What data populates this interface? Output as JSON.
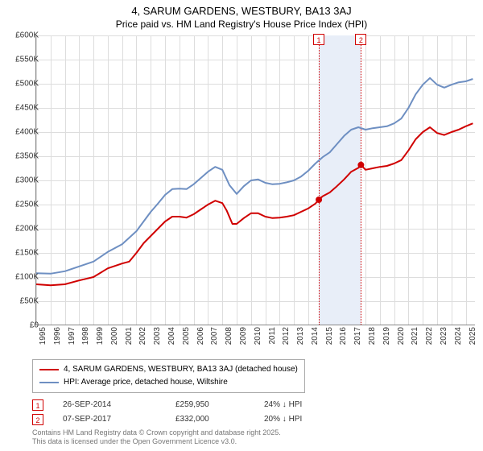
{
  "title_line1": "4, SARUM GARDENS, WESTBURY, BA13 3AJ",
  "title_line2": "Price paid vs. HM Land Registry's House Price Index (HPI)",
  "chart": {
    "type": "line",
    "x_start_year": 1995,
    "x_end_year": 2025.7,
    "ylim": [
      0,
      600000
    ],
    "ytick_step": 50000,
    "y_ticks": [
      "£0",
      "£50K",
      "£100K",
      "£150K",
      "£200K",
      "£250K",
      "£300K",
      "£350K",
      "£400K",
      "£450K",
      "£500K",
      "£550K",
      "£600K"
    ],
    "x_ticks": [
      "1995",
      "1996",
      "1997",
      "1998",
      "1999",
      "2000",
      "2001",
      "2002",
      "2003",
      "2004",
      "2005",
      "2006",
      "2007",
      "2008",
      "2009",
      "2010",
      "2011",
      "2012",
      "2013",
      "2014",
      "2015",
      "2016",
      "2017",
      "2018",
      "2019",
      "2020",
      "2021",
      "2022",
      "2023",
      "2024",
      "2025"
    ],
    "grid_color": "#dddddd",
    "background_color": "#ffffff",
    "series": [
      {
        "name": "price_paid",
        "label": "4, SARUM GARDENS, WESTBURY, BA13 3AJ (detached house)",
        "color": "#d00000",
        "line_width": 2,
        "points": [
          [
            1995.0,
            85000
          ],
          [
            1996.0,
            83000
          ],
          [
            1997.0,
            85000
          ],
          [
            1998.0,
            93000
          ],
          [
            1999.0,
            100000
          ],
          [
            2000.0,
            118000
          ],
          [
            2001.0,
            128000
          ],
          [
            2001.5,
            132000
          ],
          [
            2002.0,
            150000
          ],
          [
            2002.5,
            170000
          ],
          [
            2003.0,
            185000
          ],
          [
            2003.5,
            200000
          ],
          [
            2004.0,
            215000
          ],
          [
            2004.5,
            225000
          ],
          [
            2005.0,
            225000
          ],
          [
            2005.5,
            223000
          ],
          [
            2006.0,
            230000
          ],
          [
            2006.5,
            240000
          ],
          [
            2007.0,
            250000
          ],
          [
            2007.5,
            258000
          ],
          [
            2008.0,
            253000
          ],
          [
            2008.3,
            238000
          ],
          [
            2008.7,
            210000
          ],
          [
            2009.0,
            210000
          ],
          [
            2009.5,
            222000
          ],
          [
            2010.0,
            232000
          ],
          [
            2010.5,
            232000
          ],
          [
            2011.0,
            225000
          ],
          [
            2011.5,
            222000
          ],
          [
            2012.0,
            223000
          ],
          [
            2012.5,
            225000
          ],
          [
            2013.0,
            228000
          ],
          [
            2013.5,
            235000
          ],
          [
            2014.0,
            242000
          ],
          [
            2014.5,
            252000
          ],
          [
            2014.74,
            259950
          ],
          [
            2015.0,
            267000
          ],
          [
            2015.5,
            275000
          ],
          [
            2016.0,
            288000
          ],
          [
            2016.5,
            302000
          ],
          [
            2017.0,
            318000
          ],
          [
            2017.5,
            326000
          ],
          [
            2017.68,
            332000
          ],
          [
            2018.0,
            322000
          ],
          [
            2018.5,
            325000
          ],
          [
            2019.0,
            328000
          ],
          [
            2019.5,
            330000
          ],
          [
            2020.0,
            335000
          ],
          [
            2020.5,
            342000
          ],
          [
            2021.0,
            362000
          ],
          [
            2021.5,
            385000
          ],
          [
            2022.0,
            400000
          ],
          [
            2022.5,
            410000
          ],
          [
            2023.0,
            398000
          ],
          [
            2023.5,
            394000
          ],
          [
            2024.0,
            400000
          ],
          [
            2024.5,
            405000
          ],
          [
            2025.0,
            412000
          ],
          [
            2025.5,
            418000
          ]
        ]
      },
      {
        "name": "hpi",
        "label": "HPI: Average price, detached house, Wiltshire",
        "color": "#6e8fc2",
        "line_width": 2,
        "points": [
          [
            1995.0,
            108000
          ],
          [
            1996.0,
            107000
          ],
          [
            1997.0,
            112000
          ],
          [
            1998.0,
            122000
          ],
          [
            1999.0,
            132000
          ],
          [
            2000.0,
            152000
          ],
          [
            2001.0,
            168000
          ],
          [
            2002.0,
            195000
          ],
          [
            2002.5,
            215000
          ],
          [
            2003.0,
            235000
          ],
          [
            2003.5,
            252000
          ],
          [
            2004.0,
            270000
          ],
          [
            2004.5,
            282000
          ],
          [
            2005.0,
            283000
          ],
          [
            2005.5,
            282000
          ],
          [
            2006.0,
            292000
          ],
          [
            2006.5,
            305000
          ],
          [
            2007.0,
            318000
          ],
          [
            2007.5,
            328000
          ],
          [
            2008.0,
            322000
          ],
          [
            2008.5,
            290000
          ],
          [
            2009.0,
            272000
          ],
          [
            2009.5,
            288000
          ],
          [
            2010.0,
            300000
          ],
          [
            2010.5,
            302000
          ],
          [
            2011.0,
            295000
          ],
          [
            2011.5,
            292000
          ],
          [
            2012.0,
            293000
          ],
          [
            2012.5,
            296000
          ],
          [
            2013.0,
            300000
          ],
          [
            2013.5,
            308000
          ],
          [
            2014.0,
            320000
          ],
          [
            2014.5,
            335000
          ],
          [
            2015.0,
            348000
          ],
          [
            2015.5,
            358000
          ],
          [
            2016.0,
            375000
          ],
          [
            2016.5,
            392000
          ],
          [
            2017.0,
            405000
          ],
          [
            2017.5,
            410000
          ],
          [
            2018.0,
            405000
          ],
          [
            2018.5,
            408000
          ],
          [
            2019.0,
            410000
          ],
          [
            2019.5,
            412000
          ],
          [
            2020.0,
            418000
          ],
          [
            2020.5,
            428000
          ],
          [
            2021.0,
            450000
          ],
          [
            2021.5,
            478000
          ],
          [
            2022.0,
            498000
          ],
          [
            2022.5,
            512000
          ],
          [
            2023.0,
            498000
          ],
          [
            2023.5,
            492000
          ],
          [
            2024.0,
            498000
          ],
          [
            2024.5,
            503000
          ],
          [
            2025.0,
            505000
          ],
          [
            2025.5,
            510000
          ]
        ]
      }
    ],
    "event_band": {
      "start": 2014.74,
      "end": 2017.68,
      "fill": "#e8eef8"
    },
    "events": [
      {
        "num": "1",
        "x": 2014.74,
        "date": "26-SEP-2014",
        "price": "£259,950",
        "diff": "24% ↓ HPI"
      },
      {
        "num": "2",
        "x": 2017.68,
        "date": "07-SEP-2017",
        "price": "£332,000",
        "diff": "20% ↓ HPI"
      }
    ],
    "sale_markers": [
      {
        "x": 2014.74,
        "y": 259950,
        "color": "#d00000"
      },
      {
        "x": 2017.68,
        "y": 332000,
        "color": "#d00000"
      }
    ]
  },
  "footnote_line1": "Contains HM Land Registry data © Crown copyright and database right 2025.",
  "footnote_line2": "This data is licensed under the Open Government Licence v3.0."
}
